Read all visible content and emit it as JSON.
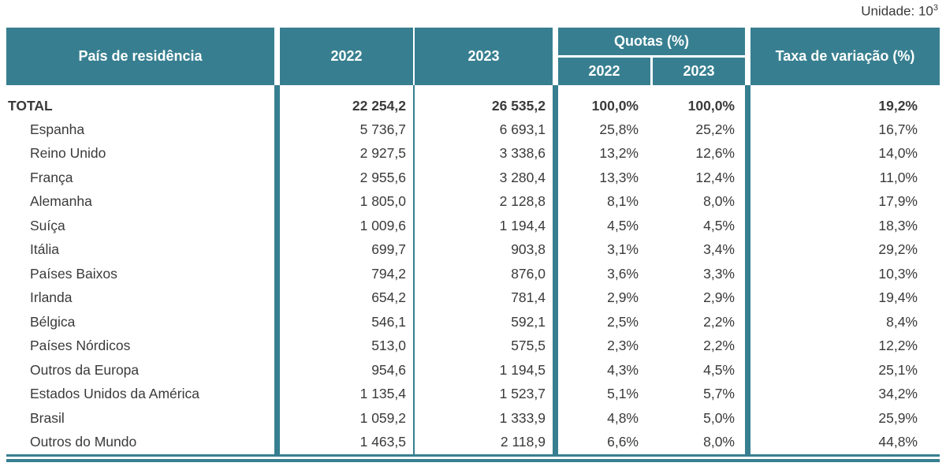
{
  "colors": {
    "teal": "#377F90",
    "text": "#3A3A3A"
  },
  "unit": {
    "label_base": "Unidade: 10",
    "exponent": "3"
  },
  "table": {
    "header": {
      "country": "País de residência",
      "col_2022": "2022",
      "col_2023": "2023",
      "quotas": "Quotas (%)",
      "quota_2022": "2022",
      "quota_2023": "2023",
      "taxa": "Taxa de variação (%)"
    },
    "rows": [
      {
        "name": "TOTAL",
        "bold": true,
        "v2022": "22 254,2",
        "v2023": "26 535,2",
        "q2022": "100,0%",
        "q2023": "100,0%",
        "taxa": "19,2%"
      },
      {
        "name": "Espanha",
        "bold": false,
        "v2022": "5 736,7",
        "v2023": "6 693,1",
        "q2022": "25,8%",
        "q2023": "25,2%",
        "taxa": "16,7%"
      },
      {
        "name": "Reino Unido",
        "bold": false,
        "v2022": "2 927,5",
        "v2023": "3 338,6",
        "q2022": "13,2%",
        "q2023": "12,6%",
        "taxa": "14,0%"
      },
      {
        "name": "França",
        "bold": false,
        "v2022": "2 955,6",
        "v2023": "3 280,4",
        "q2022": "13,3%",
        "q2023": "12,4%",
        "taxa": "11,0%"
      },
      {
        "name": "Alemanha",
        "bold": false,
        "v2022": "1 805,0",
        "v2023": "2 128,8",
        "q2022": "8,1%",
        "q2023": "8,0%",
        "taxa": "17,9%"
      },
      {
        "name": "Suíça",
        "bold": false,
        "v2022": "1 009,6",
        "v2023": "1 194,4",
        "q2022": "4,5%",
        "q2023": "4,5%",
        "taxa": "18,3%"
      },
      {
        "name": "Itália",
        "bold": false,
        "v2022": "699,7",
        "v2023": "903,8",
        "q2022": "3,1%",
        "q2023": "3,4%",
        "taxa": "29,2%"
      },
      {
        "name": "Países Baixos",
        "bold": false,
        "v2022": "794,2",
        "v2023": "876,0",
        "q2022": "3,6%",
        "q2023": "3,3%",
        "taxa": "10,3%"
      },
      {
        "name": "Irlanda",
        "bold": false,
        "v2022": "654,2",
        "v2023": "781,4",
        "q2022": "2,9%",
        "q2023": "2,9%",
        "taxa": "19,4%"
      },
      {
        "name": "Bélgica",
        "bold": false,
        "v2022": "546,1",
        "v2023": "592,1",
        "q2022": "2,5%",
        "q2023": "2,2%",
        "taxa": "8,4%"
      },
      {
        "name": "Países Nórdicos",
        "bold": false,
        "v2022": "513,0",
        "v2023": "575,5",
        "q2022": "2,3%",
        "q2023": "2,2%",
        "taxa": "12,2%"
      },
      {
        "name": "Outros da Europa",
        "bold": false,
        "v2022": "954,6",
        "v2023": "1 194,5",
        "q2022": "4,3%",
        "q2023": "4,5%",
        "taxa": "25,1%"
      },
      {
        "name": "Estados Unidos da América",
        "bold": false,
        "v2022": "1 135,4",
        "v2023": "1 523,7",
        "q2022": "5,1%",
        "q2023": "5,7%",
        "taxa": "34,2%"
      },
      {
        "name": "Brasil",
        "bold": false,
        "v2022": "1 059,2",
        "v2023": "1 333,9",
        "q2022": "4,8%",
        "q2023": "5,0%",
        "taxa": "25,9%"
      },
      {
        "name": "Outros do Mundo",
        "bold": false,
        "v2022": "1 463,5",
        "v2023": "2 118,9",
        "q2022": "6,6%",
        "q2023": "8,0%",
        "taxa": "44,8%"
      }
    ]
  },
  "chart_data": {
    "type": "table",
    "title": "",
    "unit": "Unidade: 10^3",
    "columns": [
      "País de residência",
      "2022",
      "2023",
      "Quotas (%) 2022",
      "Quotas (%) 2023",
      "Taxa de variação (%)"
    ],
    "rows": [
      [
        "TOTAL",
        22254.2,
        26535.2,
        100.0,
        100.0,
        19.2
      ],
      [
        "Espanha",
        5736.7,
        6693.1,
        25.8,
        25.2,
        16.7
      ],
      [
        "Reino Unido",
        2927.5,
        3338.6,
        13.2,
        12.6,
        14.0
      ],
      [
        "França",
        2955.6,
        3280.4,
        13.3,
        12.4,
        11.0
      ],
      [
        "Alemanha",
        1805.0,
        2128.8,
        8.1,
        8.0,
        17.9
      ],
      [
        "Suíça",
        1009.6,
        1194.4,
        4.5,
        4.5,
        18.3
      ],
      [
        "Itália",
        699.7,
        903.8,
        3.1,
        3.4,
        29.2
      ],
      [
        "Países Baixos",
        794.2,
        876.0,
        3.6,
        3.3,
        10.3
      ],
      [
        "Irlanda",
        654.2,
        781.4,
        2.9,
        2.9,
        19.4
      ],
      [
        "Bélgica",
        546.1,
        592.1,
        2.5,
        2.2,
        8.4
      ],
      [
        "Países Nórdicos",
        513.0,
        575.5,
        2.3,
        2.2,
        12.2
      ],
      [
        "Outros da Europa",
        954.6,
        1194.5,
        4.3,
        4.5,
        25.1
      ],
      [
        "Estados Unidos da América",
        1135.4,
        1523.7,
        5.1,
        5.7,
        34.2
      ],
      [
        "Brasil",
        1059.2,
        1333.9,
        4.8,
        5.0,
        25.9
      ],
      [
        "Outros do Mundo",
        1463.5,
        2118.9,
        6.6,
        8.0,
        44.8
      ]
    ]
  }
}
